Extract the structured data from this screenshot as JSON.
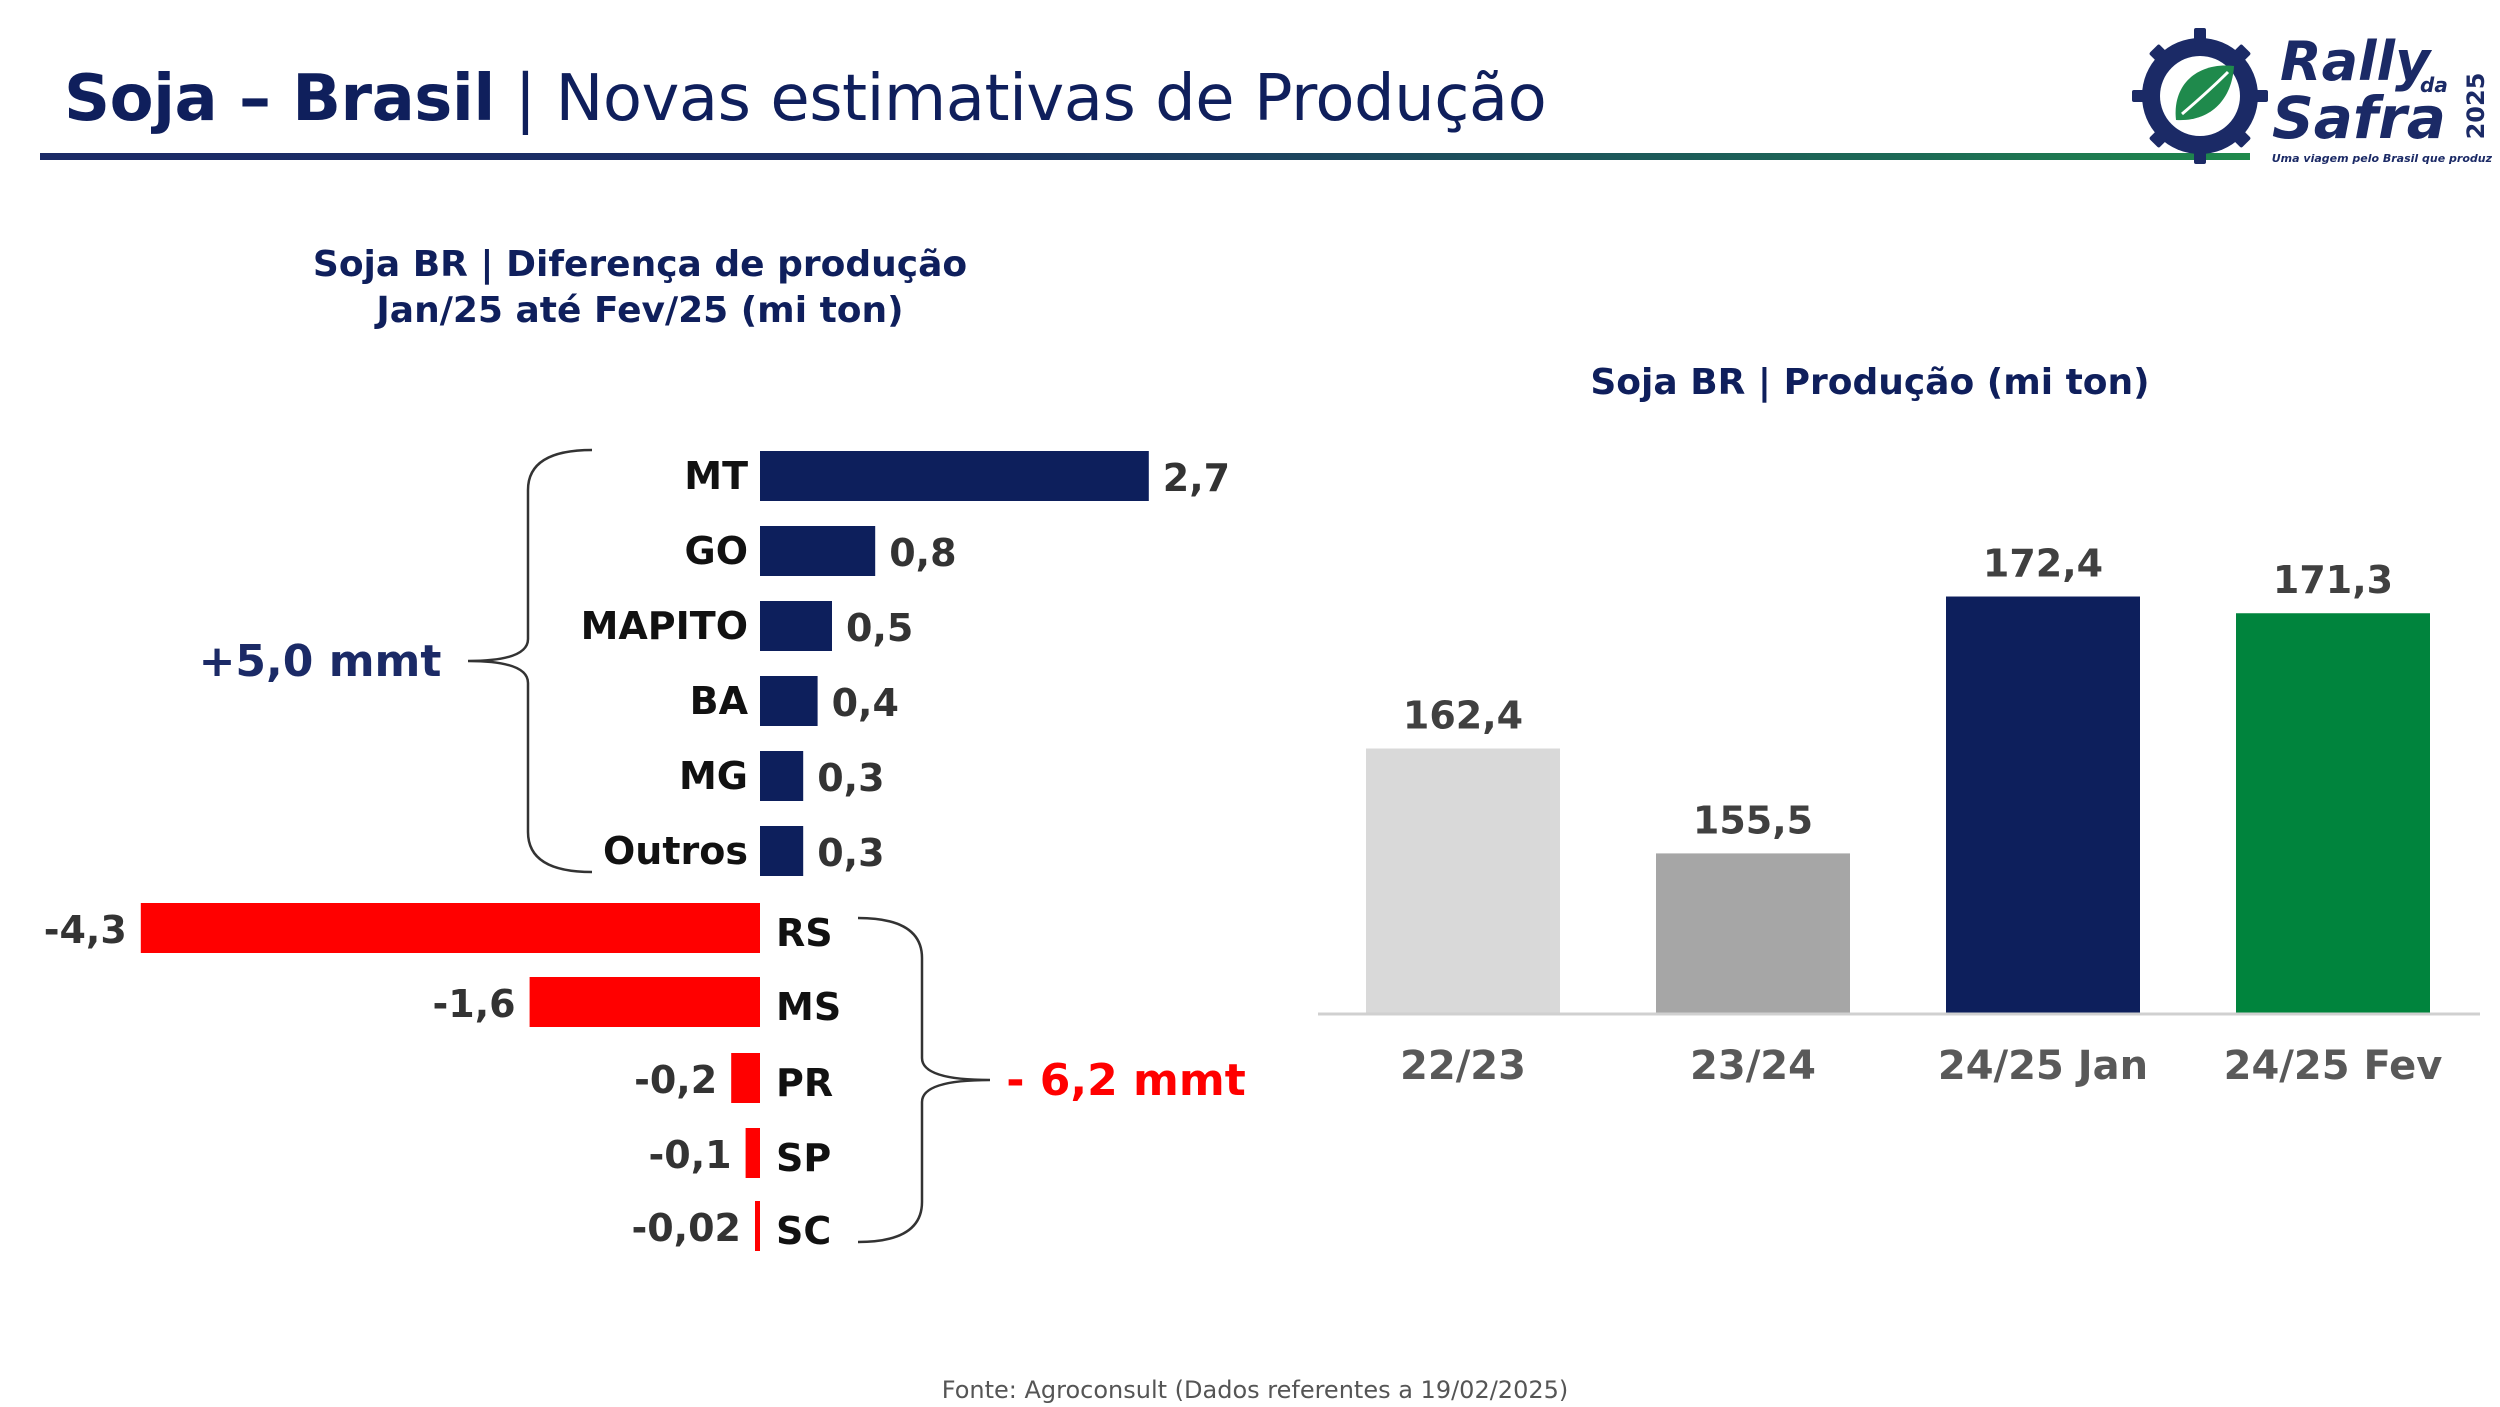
{
  "header": {
    "title_bold": "Soja – Brasil",
    "title_sep": " | ",
    "title_rest": "Novas estimativas de Produção"
  },
  "logo": {
    "line1": "Rally",
    "small": "da",
    "line2": "Safra",
    "year": "2025",
    "tagline": "Uma viagem pelo Brasil que produz",
    "icon": "leaf-gear-icon",
    "colors": {
      "ring": "#1b2a66",
      "leaf": "#1f8a4c",
      "text": "#1b2a66"
    }
  },
  "chart_data": [
    {
      "type": "bar",
      "orientation": "horizontal",
      "title": "Soja BR | Diferença de produção",
      "subtitle": "Jan/25 até Fev/25 (mi ton)",
      "categories": [
        "MT",
        "GO",
        "MAPITO",
        "BA",
        "MG",
        "Outros",
        "RS",
        "MS",
        "PR",
        "SP",
        "SC"
      ],
      "values": [
        2.7,
        0.8,
        0.5,
        0.4,
        0.3,
        0.3,
        -4.3,
        -1.6,
        -0.2,
        -0.1,
        -0.02
      ],
      "data_labels": [
        "2,7",
        "0,8",
        "0,5",
        "0,4",
        "0,3",
        "0,3",
        "-4,3",
        "-1,6",
        "-0,2",
        "-0,1",
        "-0,02"
      ],
      "colors": {
        "positive": "#0d1f5c",
        "negative": "#ff0000"
      },
      "annotations": [
        {
          "text": "+5,0 mmt",
          "group": [
            "MT",
            "GO",
            "MAPITO",
            "BA",
            "MG",
            "Outros"
          ],
          "color": "#1b2a66"
        },
        {
          "text": "- 6,2 mmt",
          "group": [
            "RS",
            "MS",
            "PR",
            "SP",
            "SC"
          ],
          "color": "#ff0000"
        }
      ],
      "grid": false,
      "legend": "none"
    },
    {
      "type": "bar",
      "title": "Soja BR | Produção (mi ton)",
      "categories": [
        "22/23",
        "23/24",
        "24/25 Jan",
        "24/25 Fev"
      ],
      "values": [
        162.4,
        155.5,
        172.4,
        171.3
      ],
      "data_labels": [
        "162,4",
        "155,5",
        "172,4",
        "171,3"
      ],
      "colors": [
        "#d9d9d9",
        "#a6a6a6",
        "#0d1f5c",
        "#00843d"
      ],
      "ylim": [
        145,
        180
      ],
      "grid": false,
      "legend": "none"
    }
  ],
  "footer": {
    "source": "Fonte: Agroconsult (Dados referentes a 19/02/2025)"
  }
}
